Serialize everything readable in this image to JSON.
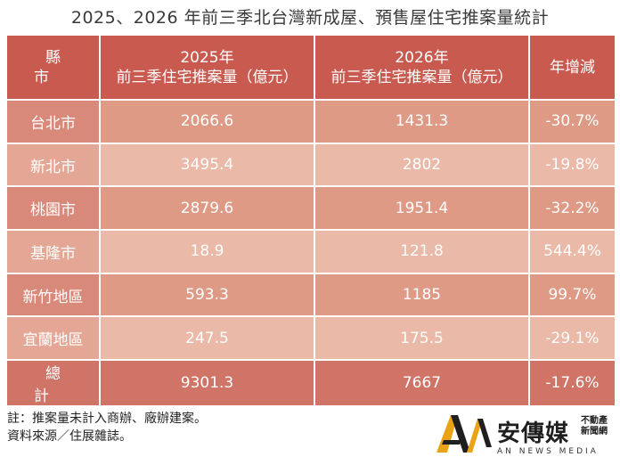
{
  "title": "2025、2026 年前三季北台灣新成屋、預售屋住宅推案量統計",
  "table": {
    "headers": {
      "county": "縣市",
      "y2025_line1": "2025年",
      "y2025_line2": "前三季住宅推案量（億元）",
      "y2026_line1": "2026年",
      "y2026_line2": "前三季住宅推案量（億元）",
      "growth": "年增減"
    },
    "rows": [
      {
        "county": "台北市",
        "v2025": "2066.6",
        "v2026": "1431.3",
        "growth": "-30.7%"
      },
      {
        "county": "新北市",
        "v2025": "3495.4",
        "v2026": "2802",
        "growth": "-19.8%"
      },
      {
        "county": "桃園市",
        "v2025": "2879.6",
        "v2026": "1951.4",
        "growth": "-32.2%"
      },
      {
        "county": "基隆市",
        "v2025": "18.9",
        "v2026": "121.8",
        "growth": "544.4%"
      },
      {
        "county": "新竹地區",
        "v2025": "593.3",
        "v2026": "1185",
        "growth": "99.7%"
      },
      {
        "county": "宜蘭地區",
        "v2025": "247.5",
        "v2026": "175.5",
        "growth": "-29.1%"
      }
    ],
    "total": {
      "county": "總計",
      "v2025": "9301.3",
      "v2026": "7667",
      "growth": "-17.6%"
    }
  },
  "notes": {
    "line1": "註：推案量未計入商辦、廠辦建案。",
    "line2": "資料來源／住展雜誌。"
  },
  "logo": {
    "name_cn": "安傳媒",
    "tag_line1": "不動產",
    "tag_line2": "新聞網",
    "name_en": "AN NEWS MEDIA",
    "colors": {
      "gold": "#e8a317",
      "dark": "#1f1f1f"
    }
  }
}
